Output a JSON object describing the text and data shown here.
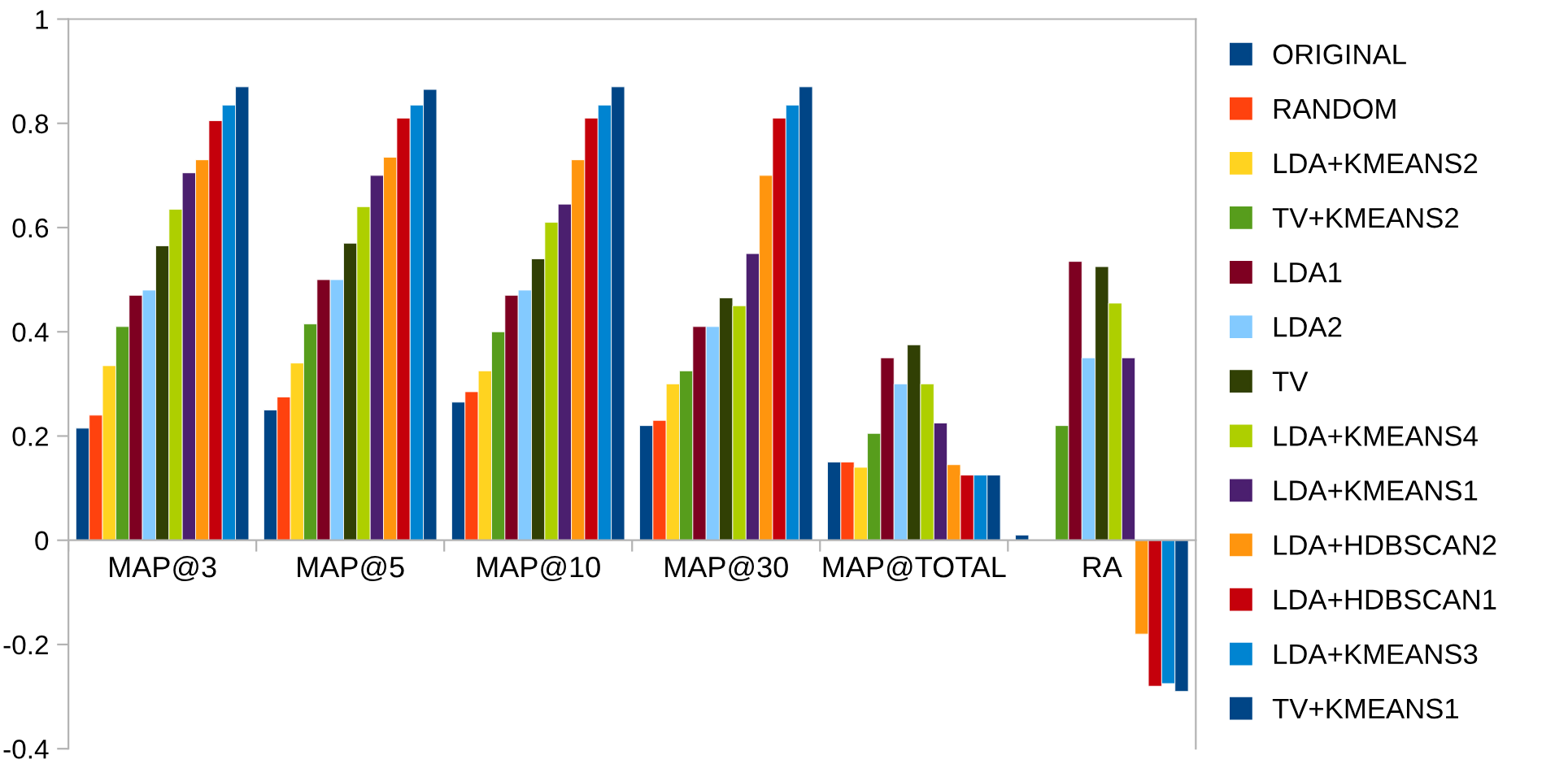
{
  "chart_data": {
    "type": "bar",
    "categories": [
      "MAP@3",
      "MAP@5",
      "MAP@10",
      "MAP@30",
      "MAP@TOTAL",
      "RA"
    ],
    "series": [
      {
        "name": "ORIGINAL",
        "color": "#004586",
        "values": [
          0.215,
          0.25,
          0.265,
          0.22,
          0.15,
          0.01
        ]
      },
      {
        "name": "RANDOM",
        "color": "#ff420e",
        "values": [
          0.24,
          0.275,
          0.285,
          0.23,
          0.15,
          null
        ]
      },
      {
        "name": "LDA+KMEANS2",
        "color": "#ffd320",
        "values": [
          0.335,
          0.34,
          0.325,
          0.3,
          0.14,
          null
        ]
      },
      {
        "name": "TV+KMEANS2",
        "color": "#579d1c",
        "values": [
          0.41,
          0.415,
          0.4,
          0.325,
          0.205,
          0.22
        ]
      },
      {
        "name": "LDA1",
        "color": "#7e0021",
        "values": [
          0.47,
          0.5,
          0.47,
          0.41,
          0.35,
          0.535
        ]
      },
      {
        "name": "LDA2",
        "color": "#83caff",
        "values": [
          0.48,
          0.5,
          0.48,
          0.41,
          0.3,
          0.35
        ]
      },
      {
        "name": "TV",
        "color": "#314004",
        "values": [
          0.565,
          0.57,
          0.54,
          0.465,
          0.375,
          0.525
        ]
      },
      {
        "name": "LDA+KMEANS4",
        "color": "#aecf00",
        "values": [
          0.635,
          0.64,
          0.61,
          0.45,
          0.3,
          0.455
        ]
      },
      {
        "name": "LDA+KMEANS1",
        "color": "#4b1f6f",
        "values": [
          0.705,
          0.7,
          0.645,
          0.55,
          0.225,
          0.35
        ]
      },
      {
        "name": "LDA+HDBSCAN2",
        "color": "#ff950e",
        "values": [
          0.73,
          0.735,
          0.73,
          0.7,
          0.145,
          -0.18
        ]
      },
      {
        "name": "LDA+HDBSCAN1",
        "color": "#c5000b",
        "values": [
          0.805,
          0.81,
          0.81,
          0.81,
          0.125,
          -0.28
        ]
      },
      {
        "name": "LDA+KMEANS3",
        "color": "#0084d1",
        "values": [
          0.835,
          0.835,
          0.835,
          0.835,
          0.125,
          -0.275
        ]
      },
      {
        "name": "TV+KMEANS1",
        "color": "#004586",
        "values": [
          0.87,
          0.865,
          0.87,
          0.87,
          0.125,
          -0.29
        ]
      }
    ],
    "ylim": [
      -0.4,
      1
    ],
    "yticks": [
      -0.4,
      -0.2,
      0,
      0.2,
      0.4,
      0.6,
      0.8,
      1
    ],
    "grid": false,
    "legend": "right",
    "marker": "square"
  }
}
